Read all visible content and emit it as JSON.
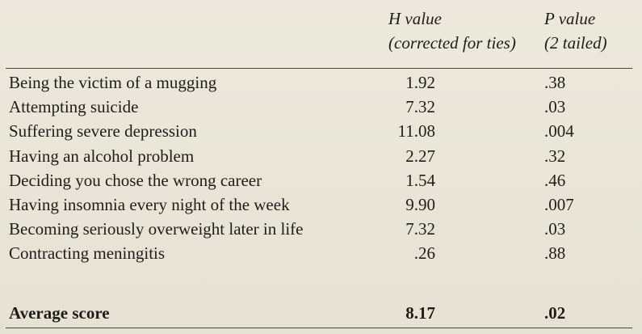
{
  "table": {
    "headers": {
      "h_value": {
        "line1": "H value",
        "line2": "(corrected for ties)"
      },
      "p_value": {
        "line1": "P value",
        "line2": "(2 tailed)"
      }
    },
    "rows": [
      {
        "label": "Being the victim of a mugging",
        "h": "1.92",
        "p": ".38"
      },
      {
        "label": "Attempting suicide",
        "h": "7.32",
        "p": ".03"
      },
      {
        "label": "Suffering severe depression",
        "h": "11.08",
        "p": ".004"
      },
      {
        "label": "Having an alcohol problem",
        "h": "2.27",
        "p": ".32"
      },
      {
        "label": "Deciding you chose the wrong career",
        "h": "1.54",
        "p": ".46"
      },
      {
        "label": "Having insomnia every night of the week",
        "h": "9.90",
        "p": ".007"
      },
      {
        "label": "Becoming seriously overweight later in life",
        "h": "7.32",
        "p": ".03"
      },
      {
        "label": "Contracting meningitis",
        "h": ".26",
        "p": ".88"
      }
    ],
    "average": {
      "label": "Average score",
      "h": "8.17",
      "p": ".02"
    }
  }
}
